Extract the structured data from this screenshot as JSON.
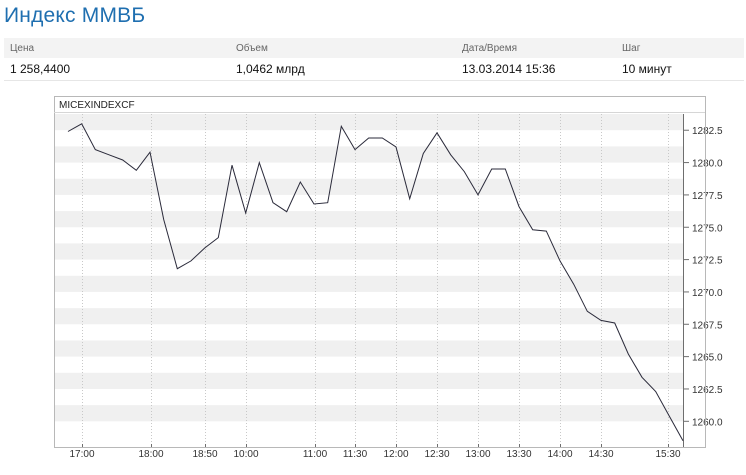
{
  "title": "Индекс ММВБ",
  "info": {
    "headers": [
      "Цена",
      "Объем",
      "Дата/Время",
      "Шаг"
    ],
    "values": [
      "1 258,4400",
      "1,0462 млрд",
      "13.03.2014 15:36",
      "10 минут"
    ]
  },
  "chart_data": {
    "type": "line",
    "title": "MICEXINDEXCF",
    "xlabel": "",
    "ylabel": "",
    "x_ticks": [
      "17:00",
      "18:00",
      "18:50",
      "10:00",
      "11:00",
      "11:30",
      "12:00",
      "12:30",
      "13:00",
      "13:30",
      "14:00",
      "14:30",
      "15:30"
    ],
    "y_ticks": [
      "1282.5",
      "1280.0",
      "1277.5",
      "1275.0",
      "1272.5",
      "1270.0",
      "1267.5",
      "1265.0",
      "1262.5",
      "1260.0"
    ],
    "ylim": [
      1258.4,
      1283.6
    ],
    "grid": "horizontal-bands",
    "series": [
      {
        "values": [
          1282.4,
          1283.0,
          1281.0,
          1280.6,
          1280.2,
          1279.4,
          1280.8,
          1275.6,
          1271.8,
          1272.4,
          1273.4,
          1274.2,
          1279.8,
          1276.1,
          1280.0,
          1276.9,
          1276.2,
          1278.5,
          1276.8,
          1276.9,
          1282.8,
          1281.0,
          1281.9,
          1281.9,
          1281.2,
          1277.2,
          1280.7,
          1282.3,
          1280.6,
          1279.3,
          1277.5,
          1279.5,
          1279.5,
          1276.6,
          1274.8,
          1274.7,
          1272.4,
          1270.6,
          1268.5,
          1267.8,
          1267.6,
          1265.2,
          1263.4,
          1262.3,
          1260.4,
          1258.5
        ]
      }
    ],
    "colors": {
      "line": "#2a2a3a",
      "band": "#f0f0f0"
    }
  }
}
